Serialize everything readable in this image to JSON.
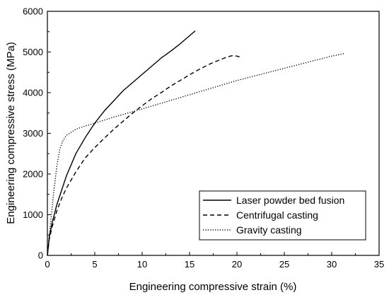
{
  "chart_data": {
    "type": "line",
    "xlabel": "Engineering compressive strain (%)",
    "ylabel": "Engineering compressive stress (MPa)",
    "xlim": [
      0,
      35
    ],
    "ylim": [
      0,
      6000
    ],
    "xticks": [
      0,
      5,
      10,
      15,
      20,
      25,
      30,
      35
    ],
    "yticks": [
      0,
      1000,
      2000,
      3000,
      4000,
      5000,
      6000
    ],
    "grid": false,
    "legend_position": "bottom-right",
    "series": [
      {
        "name": "Laser powder bed fusion",
        "style": "solid",
        "color": "#000000",
        "x": [
          0,
          0.2,
          0.5,
          1,
          1.5,
          2,
          3,
          4,
          5,
          6,
          7,
          8,
          9,
          10,
          11,
          12,
          13,
          14,
          15,
          15.6
        ],
        "y": [
          0,
          450,
          800,
          1250,
          1600,
          1950,
          2500,
          2900,
          3250,
          3550,
          3800,
          4050,
          4250,
          4450,
          4650,
          4850,
          5020,
          5200,
          5400,
          5520
        ]
      },
      {
        "name": "Centrifugal casting",
        "style": "dashed",
        "color": "#000000",
        "x": [
          0,
          0.2,
          0.5,
          1,
          1.5,
          2,
          3,
          4,
          5,
          6,
          7,
          8,
          9,
          10,
          11,
          12,
          13,
          14,
          15,
          16,
          17,
          18,
          19,
          19.5,
          20,
          20.4
        ],
        "y": [
          0,
          400,
          700,
          1100,
          1400,
          1650,
          2050,
          2400,
          2650,
          2880,
          3100,
          3300,
          3500,
          3680,
          3850,
          4000,
          4160,
          4300,
          4440,
          4570,
          4690,
          4790,
          4880,
          4910,
          4900,
          4870
        ]
      },
      {
        "name": "Gravity casting",
        "style": "dotted",
        "color": "#000000",
        "x": [
          0,
          0.3,
          0.6,
          1,
          1.3,
          1.6,
          2,
          3,
          4,
          5,
          7,
          10,
          15,
          20,
          25,
          30,
          31.3
        ],
        "y": [
          0,
          700,
          1400,
          2200,
          2600,
          2800,
          2950,
          3100,
          3180,
          3250,
          3400,
          3600,
          3950,
          4300,
          4600,
          4900,
          4960
        ]
      }
    ]
  }
}
